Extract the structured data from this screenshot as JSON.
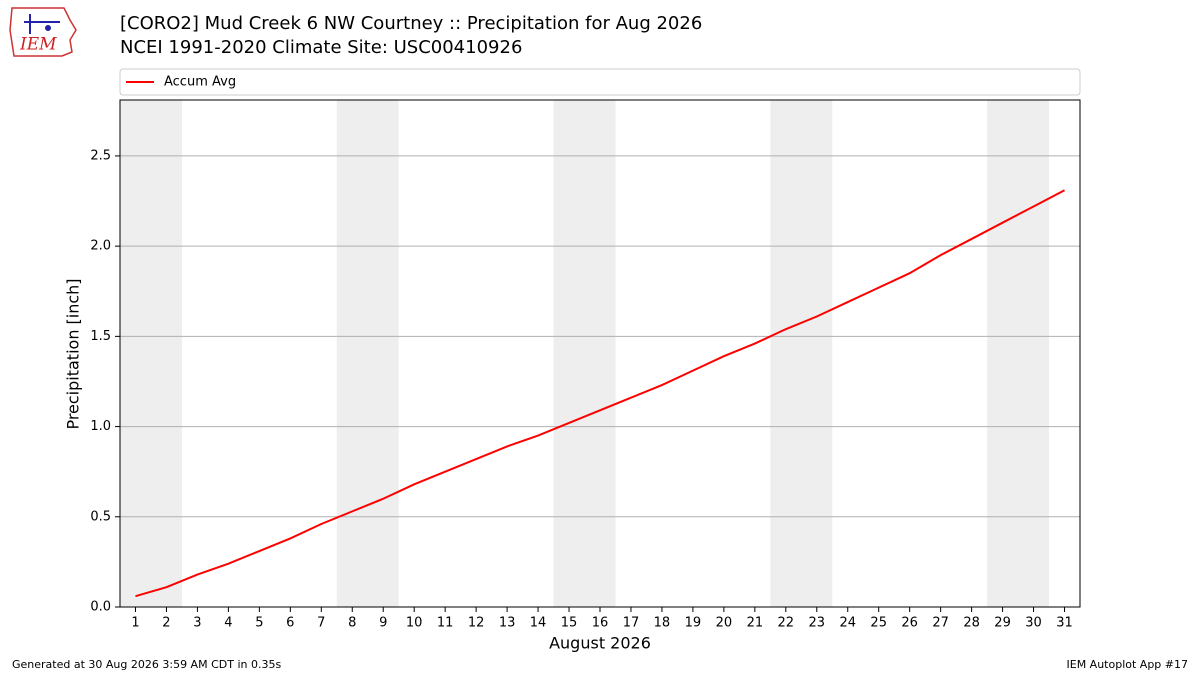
{
  "chart_data": {
    "type": "line",
    "title": "[CORO2] Mud Creek 6 NW Courtney :: Precipitation for Aug 2026",
    "subtitle": "NCEI 1991-2020 Climate Site: USC00410926",
    "logo_text": "IEM",
    "xlabel": "August 2026",
    "ylabel": "Precipitation [inch]",
    "x": [
      1,
      2,
      3,
      4,
      5,
      6,
      7,
      8,
      9,
      10,
      11,
      12,
      13,
      14,
      15,
      16,
      17,
      18,
      19,
      20,
      21,
      22,
      23,
      24,
      25,
      26,
      27,
      28,
      29,
      30,
      31
    ],
    "series": [
      {
        "name": "Accum Avg",
        "color": "#ff0000",
        "values": [
          0.06,
          0.11,
          0.18,
          0.24,
          0.31,
          0.38,
          0.46,
          0.53,
          0.6,
          0.68,
          0.75,
          0.82,
          0.89,
          0.95,
          1.02,
          1.09,
          1.16,
          1.23,
          1.31,
          1.39,
          1.46,
          1.54,
          1.61,
          1.69,
          1.77,
          1.85,
          1.95,
          2.04,
          2.13,
          2.22,
          2.31
        ]
      }
    ],
    "shaded_spans": [
      [
        0.5,
        2.5
      ],
      [
        7.5,
        9.5
      ],
      [
        14.5,
        16.5
      ],
      [
        21.5,
        23.5
      ],
      [
        28.5,
        30.5
      ]
    ],
    "shade_color": "#eeeeee",
    "xlim": [
      0.5,
      31.5
    ],
    "ylim": [
      0,
      2.81
    ],
    "xticks": [
      1,
      2,
      3,
      4,
      5,
      6,
      7,
      8,
      9,
      10,
      11,
      12,
      13,
      14,
      15,
      16,
      17,
      18,
      19,
      20,
      21,
      22,
      23,
      24,
      25,
      26,
      27,
      28,
      29,
      30,
      31
    ],
    "yticks": [
      {
        "value": 0,
        "label": "0.0"
      },
      0.5,
      {
        "value": 1,
        "label": "1.0"
      },
      1.5,
      {
        "value": 2,
        "label": "2.0"
      },
      2.5
    ],
    "grid": true,
    "legend": "top",
    "footer_left": "Generated at 30 Aug 2026 3:59 AM CDT in 0.35s",
    "footer_right": "IEM Autoplot App #17"
  }
}
